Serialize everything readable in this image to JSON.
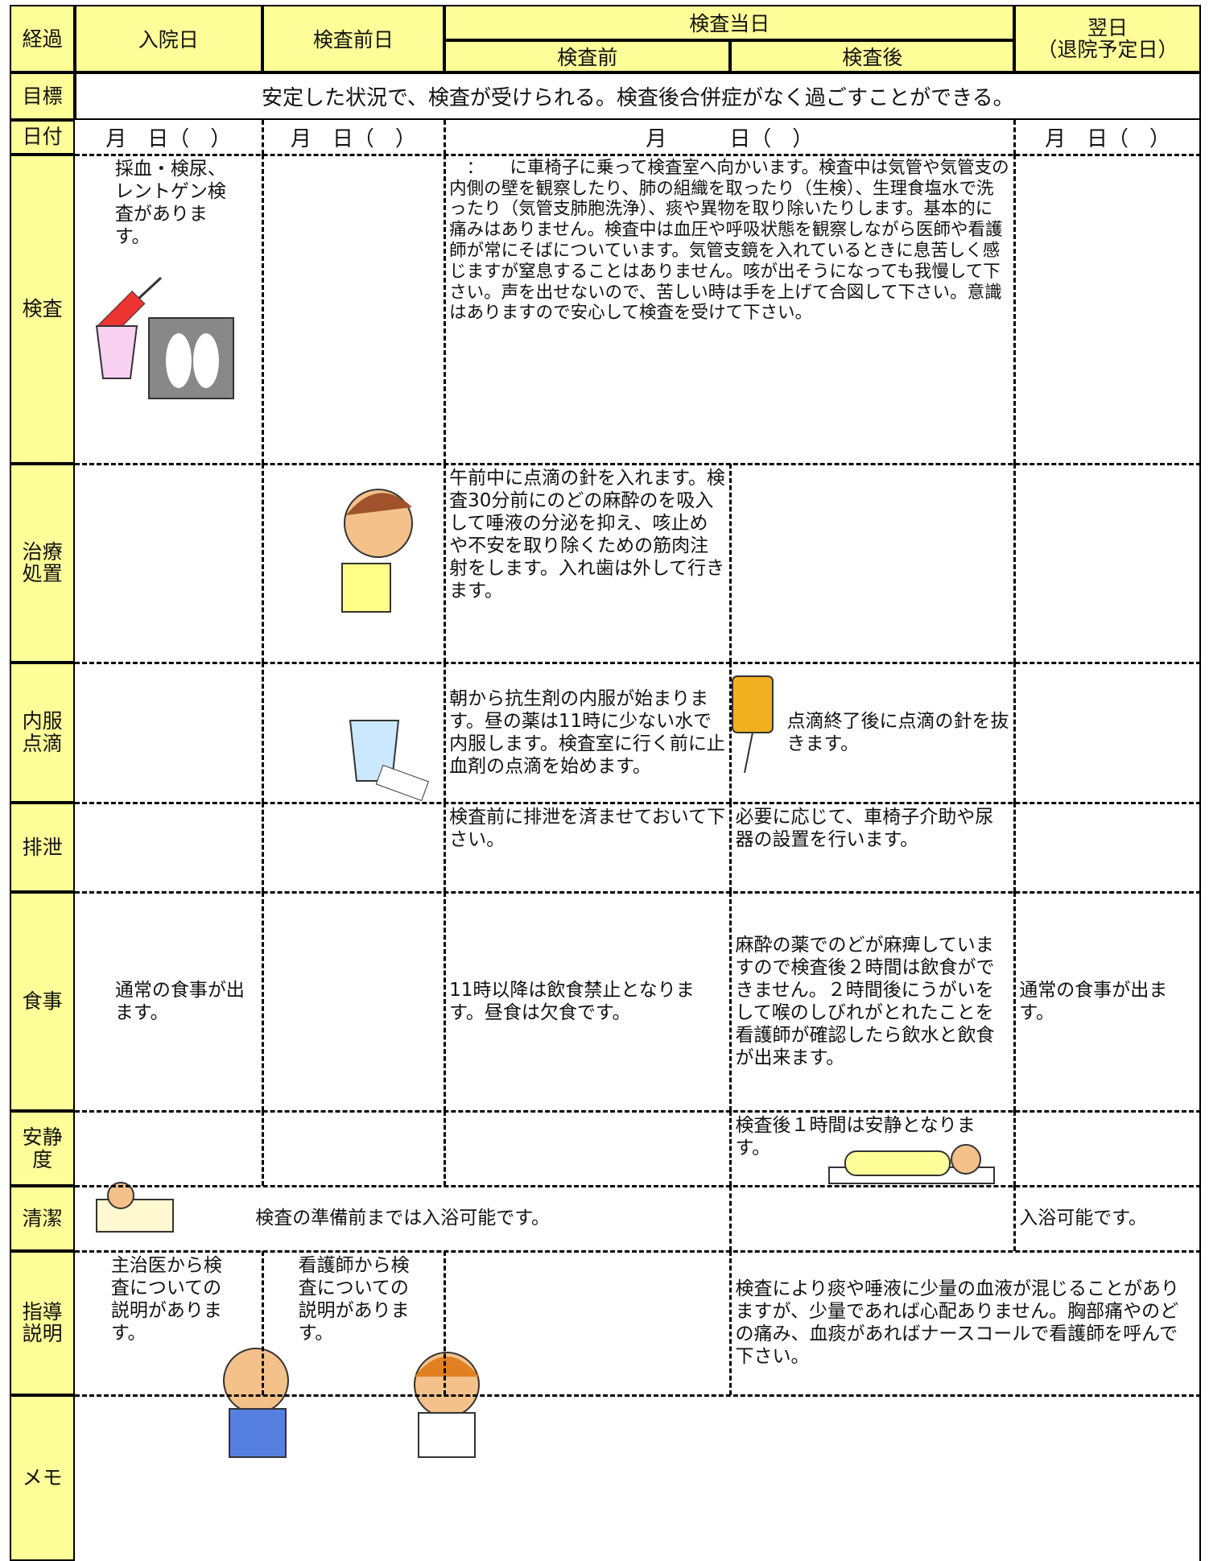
{
  "header": {
    "progress": "経過",
    "admission": "入院日",
    "day_before": "検査前日",
    "exam_day": "検査当日",
    "before": "検査前",
    "after": "検査後",
    "next_day": "翌日",
    "next_day_note": "（退院予定日）"
  },
  "goal": {
    "label": "目標",
    "text": "安定した状況で、検査が受けられる。検査後合併症がなく過ごすことができる。"
  },
  "date": {
    "label": "日付",
    "cells": [
      "月　日（　）",
      "月　日（　）",
      "月　　　日（　）",
      "月　日（　）"
    ]
  },
  "rows": [
    {
      "label": "検査",
      "cells": [
        "採血・検尿、レントゲン検査があります。",
        "　：　　に車椅子に乗って検査室へ向かいます。検査中は気管や気管支の内側の壁を観察したり、肺の組織を取ったり（生検）、生理食塩水で洗ったり（気管支肺胞洗浄）、痰や異物を取り除いたりします。基本的に痛みはありません。検査中は血圧や呼吸状態を観察しながら医師や看護師が常にそばについています。気管支鏡を入れているときに息苦しく感じますが窒息することはありません。咳が出そうになっても我慢して下さい。声を出せないので、苦しい時は手を上げて合図して下さい。意識はありますので安心して検査を受けて下さい。"
      ]
    },
    {
      "label": "治療処置",
      "cells": [
        "午前中に点滴の針を入れます。検査30分前にのどの麻酔のを吸入して唾液の分泌を抑え、咳止めや不安を取り除くための筋肉注射をします。入れ歯は外して行きます。"
      ]
    },
    {
      "label": "内服点滴",
      "cells": [
        "朝から抗生剤の内服が始まります。昼の薬は11時に少ない水で内服します。検査室に行く前に止血剤の点滴を始めます。",
        "点滴終了後に点滴の針を抜きます。"
      ]
    },
    {
      "label": "排泄",
      "cells": [
        "検査前に排泄を済ませておいて下さい。",
        "必要に応じて、車椅子介助や尿器の設置を行います。"
      ]
    },
    {
      "label": "食事",
      "cells": [
        "通常の食事が出ます。",
        "11時以降は飲食禁止となります。昼食は欠食です。",
        "麻酔の薬でのどが麻痺していますので検査後２時間は飲食ができません。２時間後にうがいをして喉のしびれがとれたことを看護師が確認したら飲水と飲食が出来ます。",
        "通常の食事が出ます。"
      ]
    },
    {
      "label": "安静度",
      "cells": [
        "検査後１時間は安静となります。"
      ]
    },
    {
      "label": "清潔",
      "cells": [
        "検査の準備前までは入浴可能です。",
        "入浴可能です。"
      ]
    },
    {
      "label": "指導説明",
      "cells": [
        "主治医から検査についての説明があります。",
        "看護師から検査についての説明があります。",
        "検査により痰や唾液に少量の血液が混じることがありますが、少量であれば心配ありません。胸部痛やのどの痛み、血痰があればナースコールで看護師を呼んで下さい。"
      ]
    },
    {
      "label": "メモ",
      "cells": []
    }
  ]
}
